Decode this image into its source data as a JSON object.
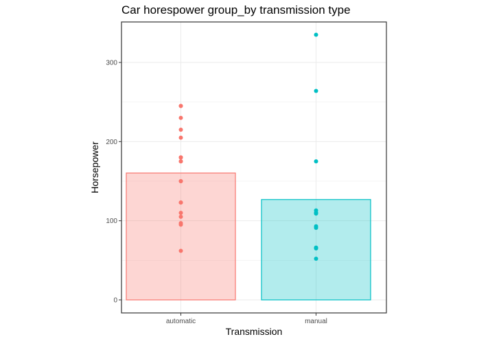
{
  "chart_data": {
    "type": "bar",
    "title": "Car horespower group_by transmission type",
    "xlabel": "Transmission",
    "ylabel": "Horsepower",
    "categories": [
      "automatic",
      "manual"
    ],
    "values": [
      160.3,
      126.8
    ],
    "bar_stat": "mean",
    "ylim": [
      -15,
      350
    ],
    "yticks": [
      0,
      100,
      200,
      300
    ],
    "grid": true,
    "legend": "none",
    "colors": {
      "automatic": {
        "fill": "#F8766D",
        "fill_opacity": 0.3,
        "stroke": "#F8766D"
      },
      "manual": {
        "fill": "#00BFC4",
        "fill_opacity": 0.3,
        "stroke": "#00BFC4"
      }
    },
    "points": {
      "automatic": [
        110,
        175,
        105,
        245,
        62,
        95,
        123,
        123,
        180,
        180,
        180,
        205,
        215,
        230,
        97,
        150,
        150,
        245,
        175
      ],
      "manual": [
        110,
        110,
        93,
        66,
        52,
        65,
        66,
        91,
        113,
        264,
        175,
        335,
        109
      ]
    }
  }
}
